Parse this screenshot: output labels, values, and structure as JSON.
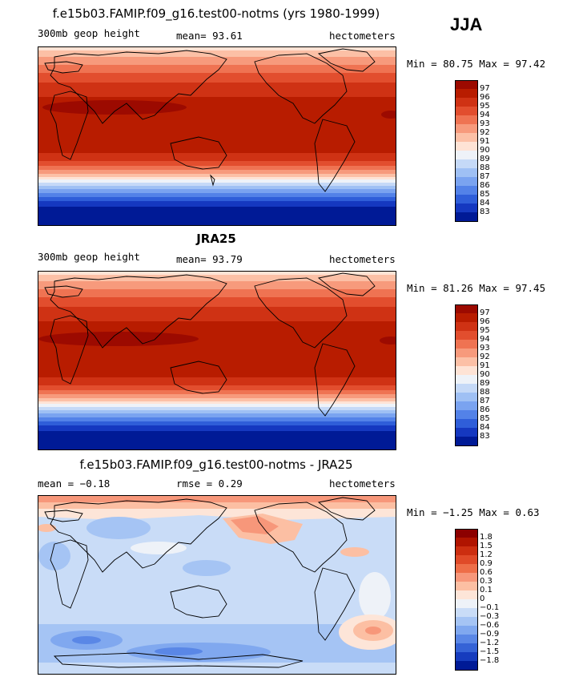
{
  "season": "JJA",
  "panels": [
    {
      "title": "f.e15b03.FAMIP.f09_g16.test00-notms (yrs 1980-1999)",
      "left_label": "300mb geop height",
      "center_label": "mean=  93.61",
      "units": "hectometers",
      "stats": "Min =  80.75 Max =  97.42",
      "colorbar": {
        "labels": [
          "97",
          "96",
          "95",
          "94",
          "93",
          "92",
          "91",
          "90",
          "89",
          "88",
          "87",
          "86",
          "85",
          "84",
          "83"
        ],
        "colors": [
          "#9c0a00",
          "#b81c00",
          "#cf3214",
          "#e24e2e",
          "#ef7352",
          "#f79a7c",
          "#fcc0a6",
          "#fee3d5",
          "#eef2f8",
          "#c5d9f7",
          "#9fc0f4",
          "#7aa3f0",
          "#5382e8",
          "#2f5ed9",
          "#1538c0",
          "#001a96"
        ]
      }
    },
    {
      "title": "JRA25",
      "left_label": "300mb geop height",
      "center_label": "mean=  93.79",
      "units": "hectometers",
      "stats": "Min =  81.26 Max =  97.45",
      "colorbar": {
        "labels": [
          "97",
          "96",
          "95",
          "94",
          "93",
          "92",
          "91",
          "90",
          "89",
          "88",
          "87",
          "86",
          "85",
          "84",
          "83"
        ],
        "colors": [
          "#9c0a00",
          "#b81c00",
          "#cf3214",
          "#e24e2e",
          "#ef7352",
          "#f79a7c",
          "#fcc0a6",
          "#fee3d5",
          "#eef2f8",
          "#c5d9f7",
          "#9fc0f4",
          "#7aa3f0",
          "#5382e8",
          "#2f5ed9",
          "#1538c0",
          "#001a96"
        ]
      }
    },
    {
      "title": "f.e15b03.FAMIP.f09_g16.test00-notms - JRA25",
      "left_label": "mean =  −0.18",
      "center_label": "rmse =    0.29",
      "units": "hectometers",
      "stats": "Min =  −1.25 Max =    0.63",
      "colorbar": {
        "labels": [
          "1.8",
          "1.5",
          "1.2",
          "0.9",
          "0.6",
          "0.3",
          "0.1",
          "0",
          "−0.1",
          "−0.3",
          "−0.6",
          "−0.9",
          "−1.2",
          "−1.5",
          "−1.8"
        ],
        "colors": [
          "#8c0000",
          "#b01400",
          "#cc2e10",
          "#e04a28",
          "#ee6e48",
          "#f7977a",
          "#fcbfa3",
          "#fde5d8",
          "#eef2f8",
          "#c9dcf7",
          "#a5c4f4",
          "#80a8ef",
          "#5a87e6",
          "#3563d6",
          "#163cbe",
          "#001a96"
        ]
      }
    }
  ]
}
